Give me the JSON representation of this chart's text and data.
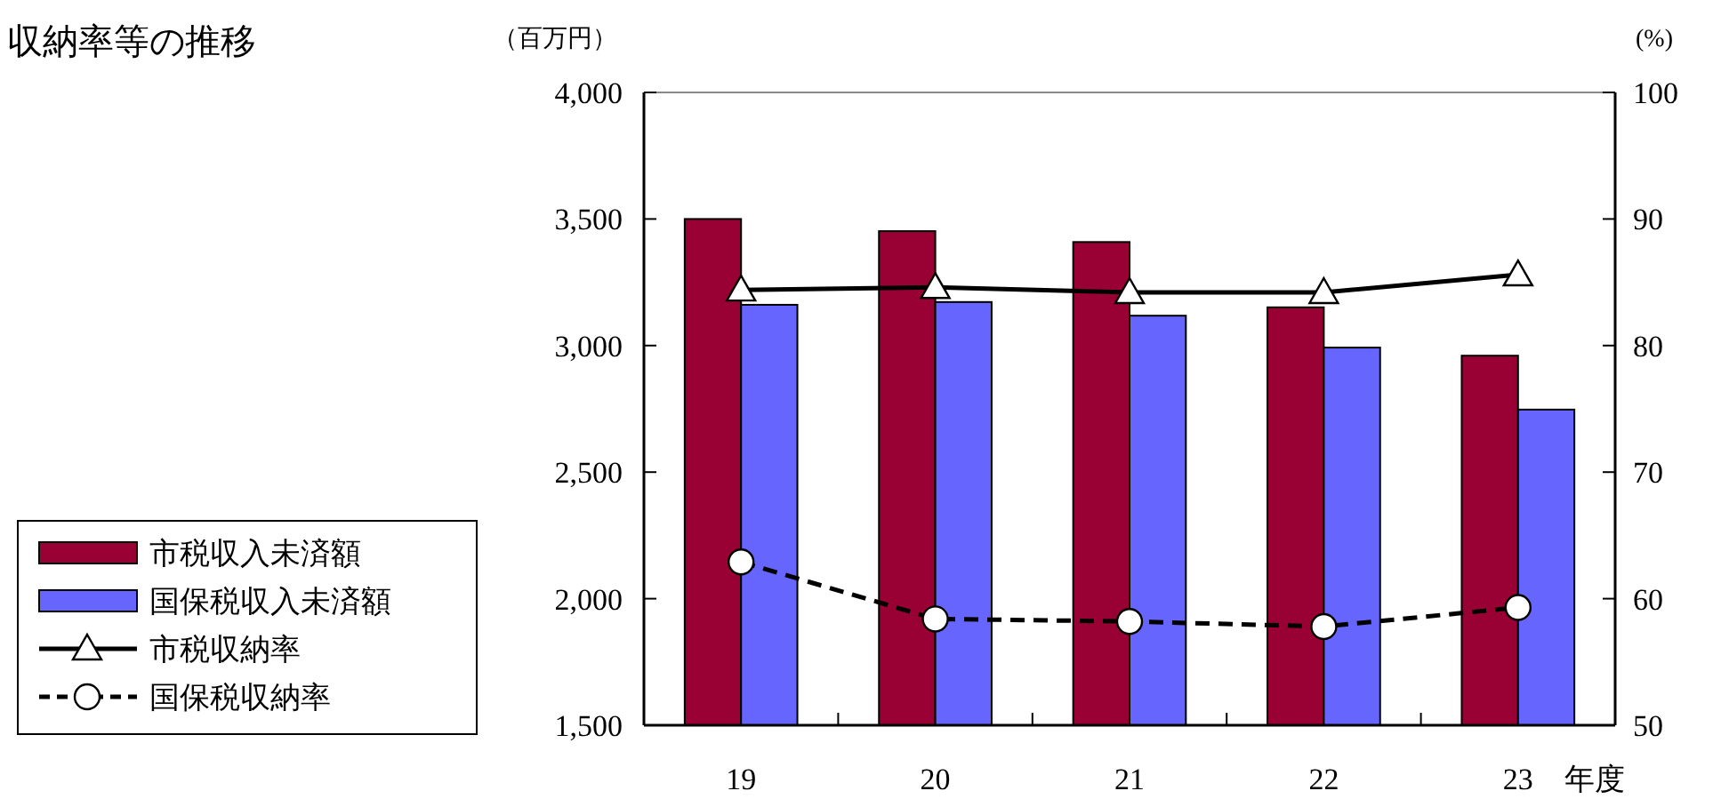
{
  "chart_data": {
    "type": "bar",
    "title": "収納率等の推移",
    "xlabel": "年度",
    "ylabel": "（百万円）",
    "y2label": "(%)",
    "categories": [
      "19",
      "20",
      "21",
      "22",
      "23"
    ],
    "series": [
      {
        "name": "市税収入未済額",
        "color": "#990033",
        "values": [
          3500,
          3452,
          3409,
          3151,
          2960
        ]
      },
      {
        "name": "国保税収入未済額",
        "color": "#6666ff",
        "values": [
          3161,
          3172,
          3118,
          2992,
          2747
        ]
      },
      {
        "name": "市税収納率",
        "type": "line",
        "axis": "y2",
        "color": "#000000",
        "marker": "triangle",
        "line_style": "solid",
        "values": [
          84.4,
          84.6,
          84.2,
          84.2,
          85.6
        ]
      },
      {
        "name": "国保税収納率",
        "type": "line",
        "axis": "y2",
        "color": "#000000",
        "marker": "circle",
        "line_style": "dashed",
        "values": [
          62.9,
          58.4,
          58.2,
          57.8,
          59.3
        ]
      }
    ],
    "ylim": [
      1500,
      4000
    ],
    "yticks": [
      {
        "value": 1500,
        "label": "1,500"
      },
      {
        "value": 2000,
        "label": "2,000"
      },
      {
        "value": 2500,
        "label": "2,500"
      },
      {
        "value": 3000,
        "label": "3,000"
      },
      {
        "value": 3500,
        "label": "3,500"
      },
      {
        "value": 4000,
        "label": "4,000"
      }
    ],
    "y2lim": [
      50,
      100
    ],
    "y2ticks": [
      50,
      60,
      70,
      80,
      90,
      100
    ],
    "grid": false,
    "legend": "left"
  }
}
